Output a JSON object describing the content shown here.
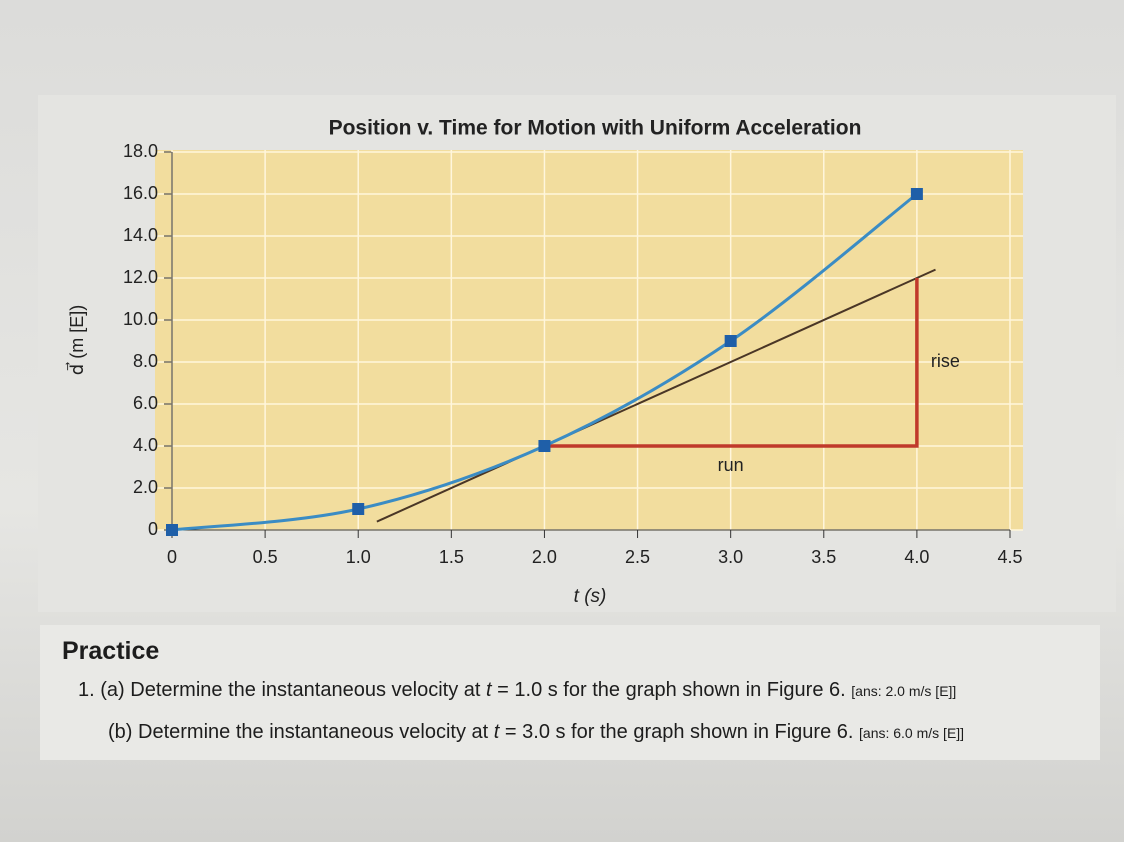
{
  "chart_data": {
    "type": "line",
    "title": "Position v. Time for Motion with Uniform Acceleration",
    "x_label": "t (s)",
    "y_label": "d⃗ (m [E])",
    "x": [
      0,
      1,
      2,
      3,
      4
    ],
    "series": [
      {
        "name": "position",
        "color": "#3b8cc4",
        "marker_color": "#1f5fa8",
        "values": [
          0,
          1,
          4,
          9,
          16
        ]
      }
    ],
    "xlim": [
      0,
      4.5
    ],
    "xticks": [
      0,
      0.5,
      {
        "value": 1,
        "label": "1.0"
      },
      1.5,
      {
        "value": 2,
        "label": "2.0"
      },
      2.5,
      {
        "value": 3,
        "label": "3.0"
      },
      3.5,
      {
        "value": 4,
        "label": "4.0"
      },
      4.5
    ],
    "ylim": [
      0,
      18
    ],
    "yticks": [
      0,
      {
        "value": 2,
        "label": "2.0"
      },
      {
        "value": 4,
        "label": "4.0"
      },
      {
        "value": 6,
        "label": "6.0"
      },
      {
        "value": 8,
        "label": "8.0"
      },
      {
        "value": 10,
        "label": "10.0"
      },
      {
        "value": 12,
        "label": "12.0"
      },
      {
        "value": 14,
        "label": "14.0"
      },
      {
        "value": 16,
        "label": "16.0"
      },
      {
        "value": 18,
        "label": "18.0"
      }
    ],
    "grid": true,
    "tangent": {
      "color": "#4a3626",
      "x": [
        1.1,
        4.1
      ],
      "y": [
        0.4,
        12.4
      ]
    },
    "triangle": {
      "color": "#c0392b",
      "run_label": "run",
      "rise_label": "rise",
      "x": [
        2,
        4,
        4
      ],
      "y": [
        4,
        4,
        12
      ]
    }
  },
  "practice": {
    "heading": "Practice",
    "items": [
      {
        "number": "1.",
        "letter": "(a)",
        "text": "Determine the instantaneous velocity at",
        "var": "t",
        "rest": "= 1.0 s for the graph shown in Figure 6.",
        "answer": "[ans: 2.0 m/s [E]]"
      },
      {
        "letter": "(b)",
        "text": "Determine the instantaneous velocity at",
        "var": "t",
        "rest": "= 3.0 s for the graph shown in Figure 6.",
        "answer": "[ans: 6.0 m/s [E]]"
      }
    ]
  }
}
